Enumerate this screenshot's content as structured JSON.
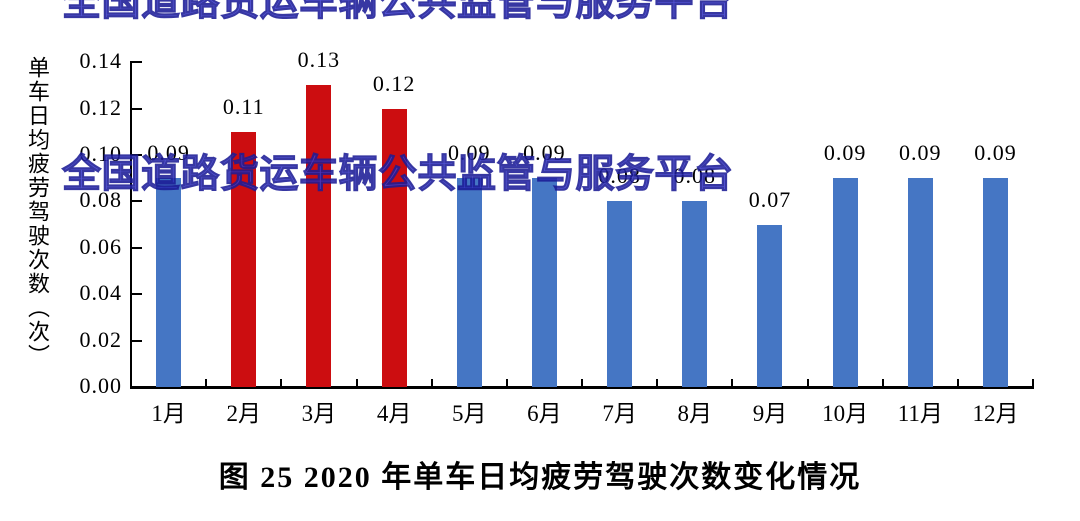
{
  "watermark": {
    "text": "全国道路货运车辆公共监管与服务平台",
    "fill_color": "#3d3dd0",
    "outline_color": "#1c1c96"
  },
  "caption": "图 25  2020 年单车日均疲劳驾驶次数变化情况",
  "colors": {
    "bar_blue": "#4576c4",
    "bar_red": "#cc0d10",
    "axis": "#000000"
  },
  "chart_data": {
    "type": "bar",
    "title": "图 25  2020 年单车日均疲劳驾驶次数变化情况",
    "y_axis_title": "单车日均疲劳驾驶次数（次）",
    "xlabel": "",
    "ylabel": "单车日均疲劳驾驶次数（次）",
    "categories": [
      "1月",
      "2月",
      "3月",
      "4月",
      "5月",
      "6月",
      "7月",
      "8月",
      "9月",
      "10月",
      "11月",
      "12月"
    ],
    "values": [
      0.09,
      0.11,
      0.13,
      0.12,
      0.09,
      0.09,
      0.08,
      0.08,
      0.07,
      0.09,
      0.09,
      0.09
    ],
    "value_labels": [
      "0.09",
      "0.11",
      "0.13",
      "0.12",
      "0.09",
      "0.09",
      "0.08",
      "0.08",
      "0.07",
      "0.09",
      "0.09",
      "0.09"
    ],
    "bar_color_keys": [
      "blue",
      "red",
      "red",
      "red",
      "blue",
      "blue",
      "blue",
      "blue",
      "blue",
      "blue",
      "blue",
      "blue"
    ],
    "yticks": [
      "0.00",
      "0.02",
      "0.04",
      "0.06",
      "0.08",
      "0.10",
      "0.12",
      "0.14"
    ],
    "ylim": [
      0,
      0.14
    ],
    "ytick_step": 0.02,
    "grid": false,
    "legend": null
  }
}
